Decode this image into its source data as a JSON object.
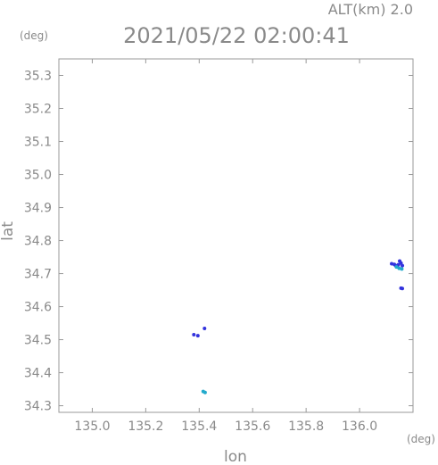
{
  "chart_data": {
    "type": "scatter",
    "title": "2021/05/22 02:00:41",
    "subtitle": "ALT(km) 2.0",
    "xlabel": "lon",
    "ylabel": "lat",
    "x_unit": "(deg)",
    "y_unit": "(deg)",
    "xlim": [
      134.875,
      136.2
    ],
    "ylim": [
      34.28,
      35.35
    ],
    "x_ticks": [
      135.0,
      135.2,
      135.4,
      135.6,
      135.8,
      136.0
    ],
    "y_ticks": [
      34.3,
      34.4,
      34.5,
      34.6,
      34.7,
      34.8,
      34.9,
      35.0,
      35.1,
      35.2,
      35.3
    ],
    "grid": false,
    "series": [
      {
        "color": "#3333dd",
        "points": [
          {
            "x": 135.42,
            "y": 34.534
          },
          {
            "x": 135.38,
            "y": 34.515
          },
          {
            "x": 135.395,
            "y": 34.512
          },
          {
            "x": 136.12,
            "y": 34.73
          },
          {
            "x": 136.13,
            "y": 34.728
          },
          {
            "x": 136.135,
            "y": 34.724
          },
          {
            "x": 136.145,
            "y": 34.727
          },
          {
            "x": 136.15,
            "y": 34.738
          },
          {
            "x": 136.155,
            "y": 34.732
          },
          {
            "x": 136.14,
            "y": 34.722
          },
          {
            "x": 136.16,
            "y": 34.724
          },
          {
            "x": 136.155,
            "y": 34.656
          },
          {
            "x": 136.16,
            "y": 34.655
          }
        ]
      },
      {
        "color": "#22aacc",
        "points": [
          {
            "x": 135.415,
            "y": 34.343
          },
          {
            "x": 135.422,
            "y": 34.34
          },
          {
            "x": 136.138,
            "y": 34.72
          },
          {
            "x": 136.148,
            "y": 34.716
          },
          {
            "x": 136.158,
            "y": 34.714
          }
        ]
      }
    ]
  }
}
